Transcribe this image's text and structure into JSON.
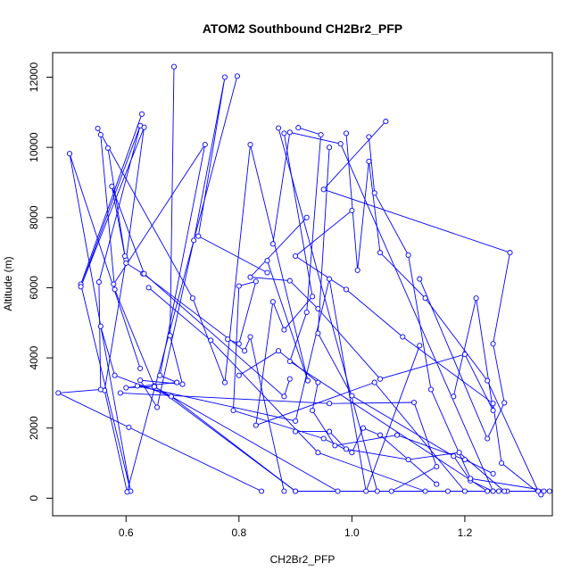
{
  "chart_data": {
    "type": "line",
    "title": "ATOM2 Southbound CH2Br2_PFP",
    "xlabel": "CH2Br2_PFP",
    "ylabel": "Altitude (m)",
    "xlim": [
      0.47,
      1.355
    ],
    "ylim": [
      -500,
      12700
    ],
    "x_ticks": [
      0.6,
      0.8,
      1.0,
      1.2
    ],
    "x_tick_labels": [
      "0.6",
      "0.8",
      "1.0",
      "1.2"
    ],
    "y_ticks": [
      0,
      2000,
      4000,
      6000,
      8000,
      10000,
      12000
    ],
    "y_tick_labels": [
      "0",
      "2000",
      "4000",
      "6000",
      "8000",
      "10000",
      "12000"
    ],
    "grid": false,
    "legend": "none",
    "series_color": "#0000ff",
    "profiles": [
      [
        [
          0.628,
          10950
        ],
        [
          0.52,
          6100
        ],
        [
          0.608,
          200
        ],
        [
          0.5,
          9820
        ],
        [
          0.625,
          3700
        ]
      ],
      [
        [
          0.685,
          12300
        ],
        [
          0.678,
          4630
        ],
        [
          0.7,
          3250
        ],
        [
          0.625,
          3360
        ],
        [
          0.655,
          2590
        ],
        [
          0.72,
          7350
        ],
        [
          0.775,
          12000
        ],
        [
          0.728,
          7470
        ],
        [
          0.85,
          6430
        ]
      ],
      [
        [
          0.797,
          12030
        ],
        [
          0.602,
          180
        ],
        [
          0.562,
          3070
        ],
        [
          0.6,
          6800
        ],
        [
          0.632,
          10570
        ],
        [
          0.52,
          6030
        ],
        [
          0.625,
          10620
        ],
        [
          0.552,
          6160
        ],
        [
          0.555,
          3100
        ],
        [
          0.48,
          3000
        ],
        [
          0.605,
          2020
        ],
        [
          0.84,
          200
        ]
      ],
      [
        [
          0.55,
          10540
        ],
        [
          0.718,
          5700
        ],
        [
          0.775,
          3300
        ],
        [
          0.82,
          10080
        ],
        [
          0.922,
          3350
        ],
        [
          0.85,
          6770
        ]
      ],
      [
        [
          0.555,
          10360
        ],
        [
          0.58,
          5950
        ],
        [
          0.65,
          3200
        ],
        [
          0.9,
          200
        ]
      ],
      [
        [
          0.568,
          9980
        ],
        [
          0.6,
          6700
        ],
        [
          0.63,
          6400
        ],
        [
          0.81,
          4200
        ],
        [
          0.82,
          4600
        ],
        [
          0.88,
          200
        ]
      ],
      [
        [
          0.598,
          6900
        ],
        [
          0.575,
          8890
        ],
        [
          0.632,
          6400
        ],
        [
          0.88,
          2900
        ],
        [
          0.89,
          3400
        ]
      ],
      [
        [
          0.578,
          6100
        ],
        [
          0.74,
          10080
        ],
        [
          0.66,
          3500
        ],
        [
          0.69,
          3300
        ],
        [
          0.6,
          3150
        ],
        [
          0.65,
          3180
        ],
        [
          0.975,
          200
        ]
      ],
      [
        [
          0.64,
          6000
        ],
        [
          0.75,
          4500
        ],
        [
          0.94,
          1300
        ],
        [
          1.13,
          200
        ]
      ],
      [
        [
          0.62,
          3200
        ],
        [
          0.9,
          2200
        ],
        [
          0.96,
          6250
        ],
        [
          1.025,
          200
        ],
        [
          1.12,
          4350
        ]
      ],
      [
        [
          0.555,
          4900
        ],
        [
          0.58,
          3500
        ],
        [
          0.68,
          2900
        ],
        [
          0.9,
          200
        ],
        [
          1.17,
          200
        ]
      ],
      [
        [
          0.59,
          3000
        ],
        [
          0.96,
          2700
        ],
        [
          1.11,
          2730
        ],
        [
          1.15,
          900
        ],
        [
          1.07,
          200
        ]
      ],
      [
        [
          0.86,
          7250
        ],
        [
          0.89,
          10430
        ],
        [
          0.98,
          10100
        ],
        [
          1.25,
          200
        ],
        [
          1.275,
          200
        ]
      ],
      [
        [
          0.87,
          10550
        ],
        [
          1.045,
          200
        ],
        [
          1.26,
          200
        ],
        [
          1.34,
          200
        ]
      ],
      [
        [
          0.88,
          10400
        ],
        [
          0.93,
          5750
        ],
        [
          0.88,
          4800
        ],
        [
          0.86,
          5600
        ],
        [
          0.83,
          2080
        ],
        [
          1.04,
          3300
        ],
        [
          1.2,
          200
        ]
      ],
      [
        [
          0.905,
          10560
        ],
        [
          0.945,
          10360
        ],
        [
          0.92,
          5300
        ],
        [
          0.89,
          3900
        ],
        [
          1.24,
          200
        ]
      ],
      [
        [
          0.96,
          10000
        ],
        [
          0.94,
          4700
        ],
        [
          1.0,
          2920
        ],
        [
          1.18,
          1200
        ],
        [
          1.21,
          500
        ],
        [
          1.25,
          200
        ]
      ],
      [
        [
          0.99,
          10400
        ],
        [
          1.01,
          6500
        ],
        [
          1.03,
          9600
        ],
        [
          1.05,
          7000
        ],
        [
          1.13,
          5700
        ],
        [
          1.24,
          3350
        ],
        [
          1.33,
          200
        ]
      ],
      [
        [
          1.03,
          10300
        ],
        [
          1.04,
          8700
        ],
        [
          1.1,
          6930
        ],
        [
          1.14,
          3100
        ],
        [
          1.21,
          560
        ],
        [
          1.35,
          200
        ]
      ],
      [
        [
          1.0,
          8200
        ],
        [
          0.9,
          6900
        ],
        [
          0.99,
          5950
        ],
        [
          1.09,
          4600
        ],
        [
          1.25,
          2700
        ],
        [
          1.265,
          1000
        ],
        [
          1.335,
          100
        ]
      ],
      [
        [
          1.06,
          10740
        ],
        [
          0.95,
          8800
        ],
        [
          1.28,
          7000
        ],
        [
          1.25,
          4400
        ],
        [
          1.27,
          2720
        ],
        [
          1.24,
          1700
        ],
        [
          1.12,
          6250
        ]
      ],
      [
        [
          0.92,
          8000
        ],
        [
          0.82,
          6300
        ],
        [
          0.89,
          6200
        ],
        [
          0.94,
          5400
        ],
        [
          1.05,
          3400
        ],
        [
          1.2,
          4100
        ],
        [
          1.25,
          2500
        ],
        [
          1.22,
          5700
        ],
        [
          1.18,
          2900
        ]
      ],
      [
        [
          0.78,
          4530
        ],
        [
          0.8,
          4400
        ],
        [
          0.83,
          6180
        ],
        [
          0.8,
          6050
        ],
        [
          0.79,
          2500
        ],
        [
          0.95,
          1700
        ],
        [
          1.0,
          1300
        ],
        [
          1.02,
          2000
        ],
        [
          1.05,
          1800
        ],
        [
          1.15,
          400
        ]
      ],
      [
        [
          0.8,
          3500
        ],
        [
          0.87,
          4200
        ],
        [
          0.94,
          3300
        ],
        [
          0.93,
          2500
        ],
        [
          0.97,
          1500
        ],
        [
          1.08,
          1800
        ],
        [
          1.2,
          1100
        ],
        [
          1.25,
          700
        ]
      ],
      [
        [
          0.9,
          1900
        ],
        [
          0.96,
          1900
        ],
        [
          0.99,
          1400
        ],
        [
          1.1,
          1100
        ],
        [
          1.19,
          1300
        ],
        [
          1.27,
          200
        ]
      ]
    ]
  }
}
